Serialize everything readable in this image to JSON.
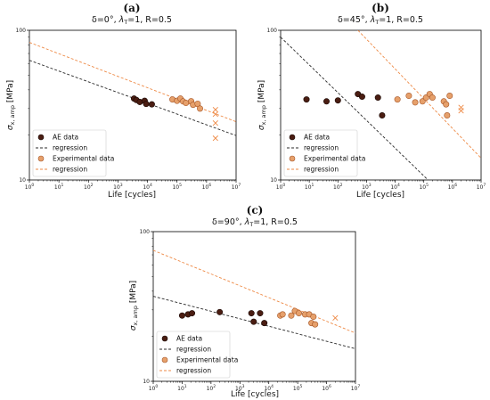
{
  "colors": {
    "ae": "#4a1d12",
    "ae_edge": "#1a0905",
    "exp": "#e6a06b",
    "exp_edge": "#a7582a",
    "ae_reg": "#2a2a2a",
    "exp_reg": "#ee8a46",
    "cross": "#ee8a46"
  },
  "chart_data": [
    {
      "panel_label": "(a)",
      "type": "scatter",
      "title": "δ=0°, λ_T=1, R=0.5",
      "xlabel": "Life [cycles]",
      "ylabel": "σ_x, amp [MPa]",
      "xscale": "log",
      "yscale": "log",
      "xlim": [
        1,
        10000000
      ],
      "ylim": [
        10,
        100
      ],
      "legend_position": "lower-left",
      "series": [
        {
          "name": "AE data",
          "kind": "points",
          "points": [
            [
              3500,
              35.0
            ],
            [
              4200,
              34.2
            ],
            [
              5500,
              33.2
            ],
            [
              8000,
              33.8
            ],
            [
              9000,
              32.2
            ],
            [
              14000,
              32.0
            ]
          ]
        },
        {
          "name": "regression",
          "kind": "line",
          "ref": "AE data",
          "points": [
            [
              1,
              63
            ],
            [
              10000000,
              19.8
            ]
          ]
        },
        {
          "name": "Experimental data",
          "kind": "points",
          "points": [
            [
              70000,
              34.5
            ],
            [
              100000,
              33.8
            ],
            [
              130000,
              35.0
            ],
            [
              160000,
              33.5
            ],
            [
              200000,
              32.7
            ],
            [
              300000,
              33.6
            ],
            [
              350000,
              31.8
            ],
            [
              500000,
              32.3
            ],
            [
              600000,
              30.0
            ]
          ]
        },
        {
          "name": "regression",
          "kind": "line",
          "ref": "Experimental data",
          "points": [
            [
              1,
              83
            ],
            [
              10000000,
              24.5
            ]
          ]
        },
        {
          "name": "",
          "kind": "crosses",
          "points": [
            [
              2000000,
              29.5
            ],
            [
              2000000,
              27.5
            ],
            [
              2000000,
              24.0
            ],
            [
              2000000,
              19.0
            ]
          ]
        }
      ]
    },
    {
      "panel_label": "(b)",
      "type": "scatter",
      "title": "δ=45°, λ_T=1, R=0.5",
      "xlabel": "Life [cycles]",
      "ylabel": "σ_x, amp [MPa]",
      "xscale": "log",
      "yscale": "log",
      "xlim": [
        1,
        10000000
      ],
      "ylim": [
        10,
        100
      ],
      "legend_position": "lower-left",
      "series": [
        {
          "name": "AE data",
          "kind": "points",
          "points": [
            [
              8,
              34.5
            ],
            [
              40,
              33.5
            ],
            [
              100,
              34.0
            ],
            [
              500,
              37.5
            ],
            [
              700,
              36.0
            ],
            [
              2500,
              35.5
            ],
            [
              3500,
              27.0
            ]
          ]
        },
        {
          "name": "regression",
          "kind": "line",
          "ref": "AE data",
          "points": [
            [
              1,
              90
            ],
            [
              140000,
              10
            ]
          ]
        },
        {
          "name": "Experimental data",
          "kind": "points",
          "points": [
            [
              12000,
              34.5
            ],
            [
              30000,
              36.5
            ],
            [
              50000,
              33.0
            ],
            [
              90000,
              33.5
            ],
            [
              120000,
              35.5
            ],
            [
              160000,
              37.5
            ],
            [
              200000,
              35.5
            ],
            [
              500000,
              33.5
            ],
            [
              600000,
              32.0
            ],
            [
              650000,
              27.0
            ],
            [
              800000,
              36.5
            ]
          ]
        },
        {
          "name": "regression",
          "kind": "line",
          "ref": "Experimental data",
          "points": [
            [
              500,
              100
            ],
            [
              10000000,
              14
            ]
          ]
        },
        {
          "name": "",
          "kind": "crosses",
          "points": [
            [
              2000000,
              30.5
            ],
            [
              2000000,
              29.0
            ]
          ]
        }
      ]
    },
    {
      "panel_label": "(c)",
      "type": "scatter",
      "title": "δ=90°, λ_T=1, R=0.5",
      "xlabel": "Life [cycles]",
      "ylabel": "σ_x, amp [MPa]",
      "xscale": "log",
      "yscale": "log",
      "xlim": [
        1,
        10000000
      ],
      "ylim": [
        10,
        100
      ],
      "legend_position": "lower-left",
      "series": [
        {
          "name": "AE data",
          "kind": "points",
          "points": [
            [
              10,
              27.5
            ],
            [
              16,
              28.0
            ],
            [
              22,
              28.5
            ],
            [
              200,
              29.0
            ],
            [
              2500,
              28.5
            ],
            [
              3000,
              25.0
            ],
            [
              5000,
              28.5
            ],
            [
              7000,
              24.5
            ]
          ]
        },
        {
          "name": "regression",
          "kind": "line",
          "ref": "AE data",
          "points": [
            [
              1,
              37
            ],
            [
              10000000,
              16.5
            ]
          ]
        },
        {
          "name": "Experimental data",
          "kind": "points",
          "points": [
            [
              25000,
              27.5
            ],
            [
              30000,
              28.0
            ],
            [
              60000,
              27.5
            ],
            [
              80000,
              29.5
            ],
            [
              110000,
              28.5
            ],
            [
              180000,
              28.0
            ],
            [
              250000,
              28.0
            ],
            [
              300000,
              24.5
            ],
            [
              350000,
              27.0
            ],
            [
              400000,
              24.0
            ]
          ]
        },
        {
          "name": "regression",
          "kind": "line",
          "ref": "Experimental data",
          "points": [
            [
              1,
              75
            ],
            [
              10000000,
              21
            ]
          ]
        },
        {
          "name": "",
          "kind": "crosses",
          "points": [
            [
              2000000,
              26.5
            ]
          ]
        }
      ]
    }
  ]
}
